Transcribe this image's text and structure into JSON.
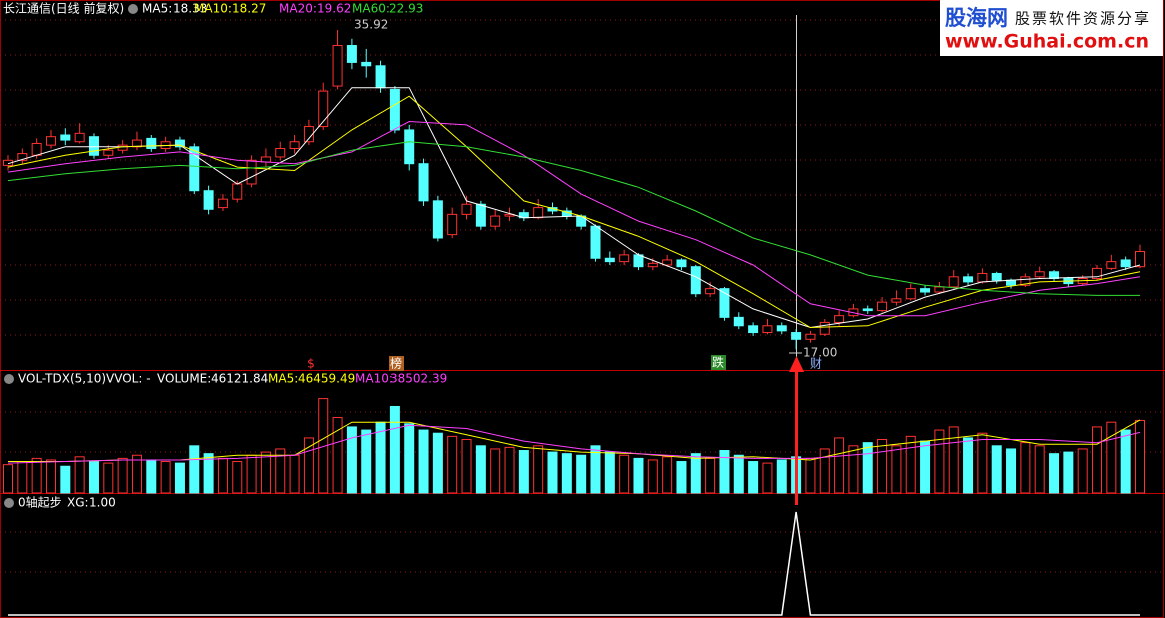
{
  "chart_data": {
    "type": "candlestick",
    "title": "长江通信(日线 前复权)",
    "ylim": [
      15.9,
      37.4
    ],
    "up_color": "#ff3232",
    "down_color": "#54ffff",
    "ohlc": [
      [
        27.9,
        28.5,
        27.6,
        28.2
      ],
      [
        28.2,
        28.9,
        28.0,
        28.6
      ],
      [
        28.5,
        29.5,
        28.3,
        29.2
      ],
      [
        29.1,
        30.0,
        28.9,
        29.6
      ],
      [
        29.7,
        30.1,
        29.1,
        29.4
      ],
      [
        29.3,
        30.4,
        29.2,
        29.8
      ],
      [
        29.6,
        29.8,
        28.3,
        28.5
      ],
      [
        28.5,
        29.1,
        28.3,
        28.8
      ],
      [
        28.8,
        29.4,
        28.6,
        29.1
      ],
      [
        29.0,
        29.9,
        28.8,
        29.4
      ],
      [
        29.5,
        29.7,
        28.7,
        28.9
      ],
      [
        28.9,
        29.6,
        28.7,
        29.3
      ],
      [
        29.4,
        29.6,
        28.8,
        29.0
      ],
      [
        29.0,
        29.2,
        26.2,
        26.4
      ],
      [
        26.4,
        26.7,
        25.0,
        25.3
      ],
      [
        25.4,
        26.2,
        25.2,
        25.9
      ],
      [
        25.9,
        27.0,
        25.7,
        26.8
      ],
      [
        26.8,
        28.5,
        26.6,
        28.2
      ],
      [
        28.1,
        28.9,
        27.8,
        28.4
      ],
      [
        28.4,
        29.3,
        28.2,
        28.9
      ],
      [
        28.9,
        29.7,
        28.6,
        29.3
      ],
      [
        29.3,
        30.6,
        29.1,
        30.2
      ],
      [
        30.2,
        32.8,
        30.0,
        32.3
      ],
      [
        32.6,
        35.92,
        32.4,
        35.0
      ],
      [
        35.0,
        35.4,
        33.6,
        34.0
      ],
      [
        34.0,
        34.8,
        33.1,
        33.8
      ],
      [
        33.8,
        34.1,
        32.2,
        32.5
      ],
      [
        32.4,
        32.6,
        29.8,
        30.0
      ],
      [
        30.0,
        30.3,
        27.6,
        28.0
      ],
      [
        28.0,
        28.3,
        25.5,
        25.8
      ],
      [
        25.8,
        26.1,
        23.4,
        23.6
      ],
      [
        23.8,
        25.4,
        23.6,
        25.0
      ],
      [
        25.0,
        26.1,
        24.7,
        25.6
      ],
      [
        25.6,
        25.8,
        24.1,
        24.3
      ],
      [
        24.3,
        25.3,
        24.1,
        24.9
      ],
      [
        24.9,
        25.4,
        24.6,
        25.0
      ],
      [
        25.1,
        25.3,
        24.6,
        24.8
      ],
      [
        24.8,
        25.9,
        24.7,
        25.4
      ],
      [
        25.4,
        25.7,
        25.0,
        25.2
      ],
      [
        25.2,
        25.4,
        24.7,
        24.9
      ],
      [
        24.9,
        25.0,
        24.1,
        24.3
      ],
      [
        24.3,
        24.4,
        22.2,
        22.4
      ],
      [
        22.4,
        22.8,
        22.0,
        22.2
      ],
      [
        22.2,
        22.9,
        22.0,
        22.6
      ],
      [
        22.6,
        22.7,
        21.7,
        21.9
      ],
      [
        21.9,
        22.4,
        21.7,
        22.1
      ],
      [
        22.0,
        22.6,
        21.9,
        22.3
      ],
      [
        22.3,
        22.4,
        21.7,
        21.9
      ],
      [
        21.9,
        22.0,
        20.1,
        20.3
      ],
      [
        20.3,
        21.0,
        20.1,
        20.6
      ],
      [
        20.6,
        20.7,
        18.7,
        18.9
      ],
      [
        18.9,
        19.2,
        18.2,
        18.4
      ],
      [
        18.4,
        18.6,
        17.8,
        18.0
      ],
      [
        18.0,
        18.8,
        17.9,
        18.4
      ],
      [
        18.4,
        18.6,
        17.9,
        18.1
      ],
      [
        18.0,
        18.2,
        17.0,
        17.6
      ],
      [
        17.6,
        18.1,
        17.4,
        17.9
      ],
      [
        17.9,
        18.8,
        17.8,
        18.6
      ],
      [
        18.6,
        19.3,
        18.4,
        19.0
      ],
      [
        19.0,
        19.7,
        18.9,
        19.4
      ],
      [
        19.4,
        19.6,
        19.1,
        19.3
      ],
      [
        19.3,
        20.1,
        19.2,
        19.8
      ],
      [
        19.8,
        20.5,
        19.6,
        20.0
      ],
      [
        20.0,
        20.9,
        19.9,
        20.6
      ],
      [
        20.6,
        20.8,
        20.2,
        20.4
      ],
      [
        20.4,
        21.0,
        20.3,
        20.7
      ],
      [
        20.7,
        21.7,
        20.6,
        21.3
      ],
      [
        21.3,
        21.5,
        20.8,
        21.0
      ],
      [
        21.0,
        21.8,
        20.9,
        21.5
      ],
      [
        21.5,
        21.6,
        20.9,
        21.1
      ],
      [
        21.1,
        21.2,
        20.6,
        20.8
      ],
      [
        20.8,
        21.5,
        20.7,
        21.3
      ],
      [
        21.3,
        21.9,
        21.2,
        21.6
      ],
      [
        21.6,
        21.7,
        21.0,
        21.2
      ],
      [
        21.2,
        21.3,
        20.7,
        20.9
      ],
      [
        20.9,
        21.4,
        20.8,
        21.2
      ],
      [
        21.2,
        22.0,
        21.1,
        21.8
      ],
      [
        21.8,
        22.6,
        21.7,
        22.2
      ],
      [
        22.3,
        22.5,
        21.7,
        21.9
      ],
      [
        21.9,
        23.2,
        21.8,
        22.8
      ]
    ],
    "ma_x": [
      0,
      4,
      8,
      12,
      16,
      20,
      24,
      28,
      32,
      36,
      40,
      44,
      48,
      52,
      56,
      60,
      64,
      68,
      72,
      76,
      79
    ],
    "ma_lines": [
      {
        "name": "MA5:",
        "current": 18.33,
        "color": "#ffffff",
        "values": [
          28.0,
          29.0,
          29.0,
          29.1,
          26.8,
          28.5,
          32.5,
          32.5,
          25.8,
          24.8,
          24.9,
          22.6,
          21.3,
          19.4,
          18.3,
          18.8,
          20.1,
          21.0,
          21.2,
          21.3,
          22.0
        ]
      },
      {
        "name": "MA10:",
        "current": 18.27,
        "color": "#ffff00",
        "values": [
          27.8,
          28.5,
          29.0,
          29.1,
          27.8,
          27.6,
          30.0,
          32.0,
          29.0,
          25.8,
          24.9,
          23.7,
          22.2,
          20.3,
          18.3,
          18.4,
          19.5,
          20.5,
          21.0,
          21.1,
          21.6
        ]
      },
      {
        "name": "MA20:",
        "current": 19.62,
        "color": "#ff40ff",
        "values": [
          27.5,
          28.0,
          28.4,
          28.7,
          28.2,
          28.0,
          28.7,
          30.5,
          30.3,
          28.5,
          26.2,
          24.6,
          23.5,
          22.0,
          19.7,
          19.0,
          19.0,
          19.8,
          20.5,
          20.9,
          21.3
        ]
      },
      {
        "name": "MA60:",
        "current": 22.93,
        "color": "#33dd33",
        "values": [
          27.0,
          27.4,
          27.7,
          27.9,
          27.7,
          27.9,
          28.8,
          29.3,
          29.0,
          28.4,
          27.6,
          26.6,
          25.2,
          23.6,
          22.6,
          21.4,
          20.8,
          20.5,
          20.3,
          20.2,
          20.2
        ]
      }
    ],
    "high_label": 35.92,
    "low_label": {
      "value": 17,
      "label": "17.00"
    },
    "markers": [
      "$",
      "榜",
      "跌",
      "财"
    ],
    "volume": {
      "title": "VOL-TDX(5,10)",
      "vvol": "VVOL: -",
      "label": "VOLUME:",
      "current": 46121.84,
      "ylim": [
        0,
        75000
      ],
      "values": [
        18000,
        20000,
        22000,
        21000,
        17000,
        23000,
        20000,
        19000,
        22000,
        24000,
        21000,
        20000,
        19000,
        30000,
        25000,
        22000,
        20000,
        24000,
        26000,
        28000,
        24000,
        35000,
        60000,
        48000,
        42000,
        40000,
        45000,
        55000,
        44000,
        40000,
        38000,
        36000,
        34000,
        30000,
        28000,
        29000,
        27000,
        30000,
        26000,
        25000,
        24000,
        30000,
        26000,
        24000,
        22000,
        21000,
        23000,
        20000,
        25000,
        22000,
        27000,
        24000,
        20000,
        19000,
        21000,
        23000,
        22000,
        28000,
        35000,
        30000,
        32000,
        34000,
        30000,
        36000,
        33000,
        40000,
        42000,
        35000,
        38000,
        30000,
        28000,
        32000,
        30000,
        25000,
        26000,
        28000,
        42000,
        45000,
        40000,
        46121.84
      ],
      "ma_lines": [
        {
          "name": "MA5:",
          "current": 46459.49,
          "color": "#ffff00",
          "values": [
            20000,
            20000,
            21000,
            21000,
            24000,
            24000,
            45000,
            45000,
            37000,
            29000,
            26000,
            25000,
            22000,
            23000,
            21000,
            29000,
            33000,
            37000,
            31000,
            31000,
            46459.49
          ]
        },
        {
          "name": "MA10:",
          "current": 38502.39,
          "color": "#ff40ff",
          "values": [
            19000,
            20000,
            21000,
            21000,
            22000,
            24000,
            35000,
            43000,
            41000,
            33000,
            28000,
            25000,
            23000,
            22000,
            22000,
            25000,
            30000,
            34000,
            34000,
            32000,
            38502.39
          ]
        }
      ]
    },
    "indicator": {
      "title": "0轴起步",
      "label": "XG:",
      "current": {
        "value": 1,
        "label": "1.00"
      },
      "ylim": [
        0,
        1
      ],
      "color": "#ffffff",
      "values": [
        0,
        0,
        0,
        0,
        0,
        0,
        0,
        0,
        0,
        0,
        0,
        0,
        0,
        0,
        0,
        0,
        0,
        0,
        0,
        0,
        0,
        0,
        0,
        0,
        0,
        0,
        0,
        0,
        0,
        0,
        0,
        0,
        0,
        0,
        0,
        0,
        0,
        0,
        0,
        0,
        0,
        0,
        0,
        0,
        0,
        0,
        0,
        0,
        0,
        0,
        0,
        0,
        0,
        0,
        0,
        1,
        0,
        0,
        0,
        0,
        0,
        0,
        0,
        0,
        0,
        0,
        0,
        0,
        0,
        0,
        0,
        0,
        0,
        0,
        0,
        0,
        0,
        0,
        0,
        0
      ]
    },
    "watermark": {
      "site": "股海网",
      "slogan": "股票软件资源分享",
      "url": "www.Guhai.com.cn"
    }
  }
}
